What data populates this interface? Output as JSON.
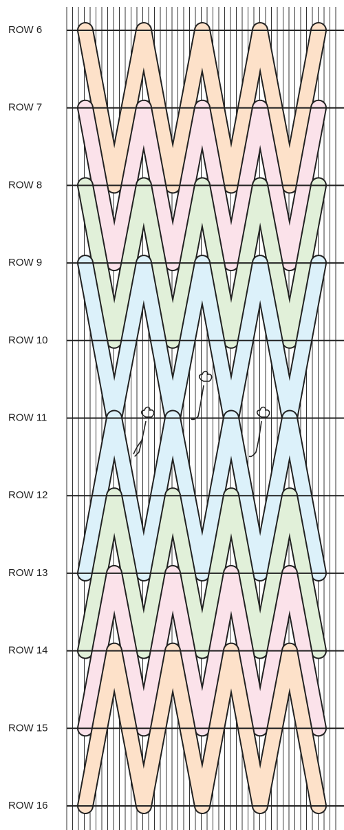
{
  "rows": [
    "ROW 6",
    "ROW 7",
    "ROW 8",
    "ROW 9",
    "ROW 10",
    "ROW 11",
    "ROW 12",
    "ROW 13",
    "ROW 14",
    "ROW 15",
    "ROW 16"
  ]
}
